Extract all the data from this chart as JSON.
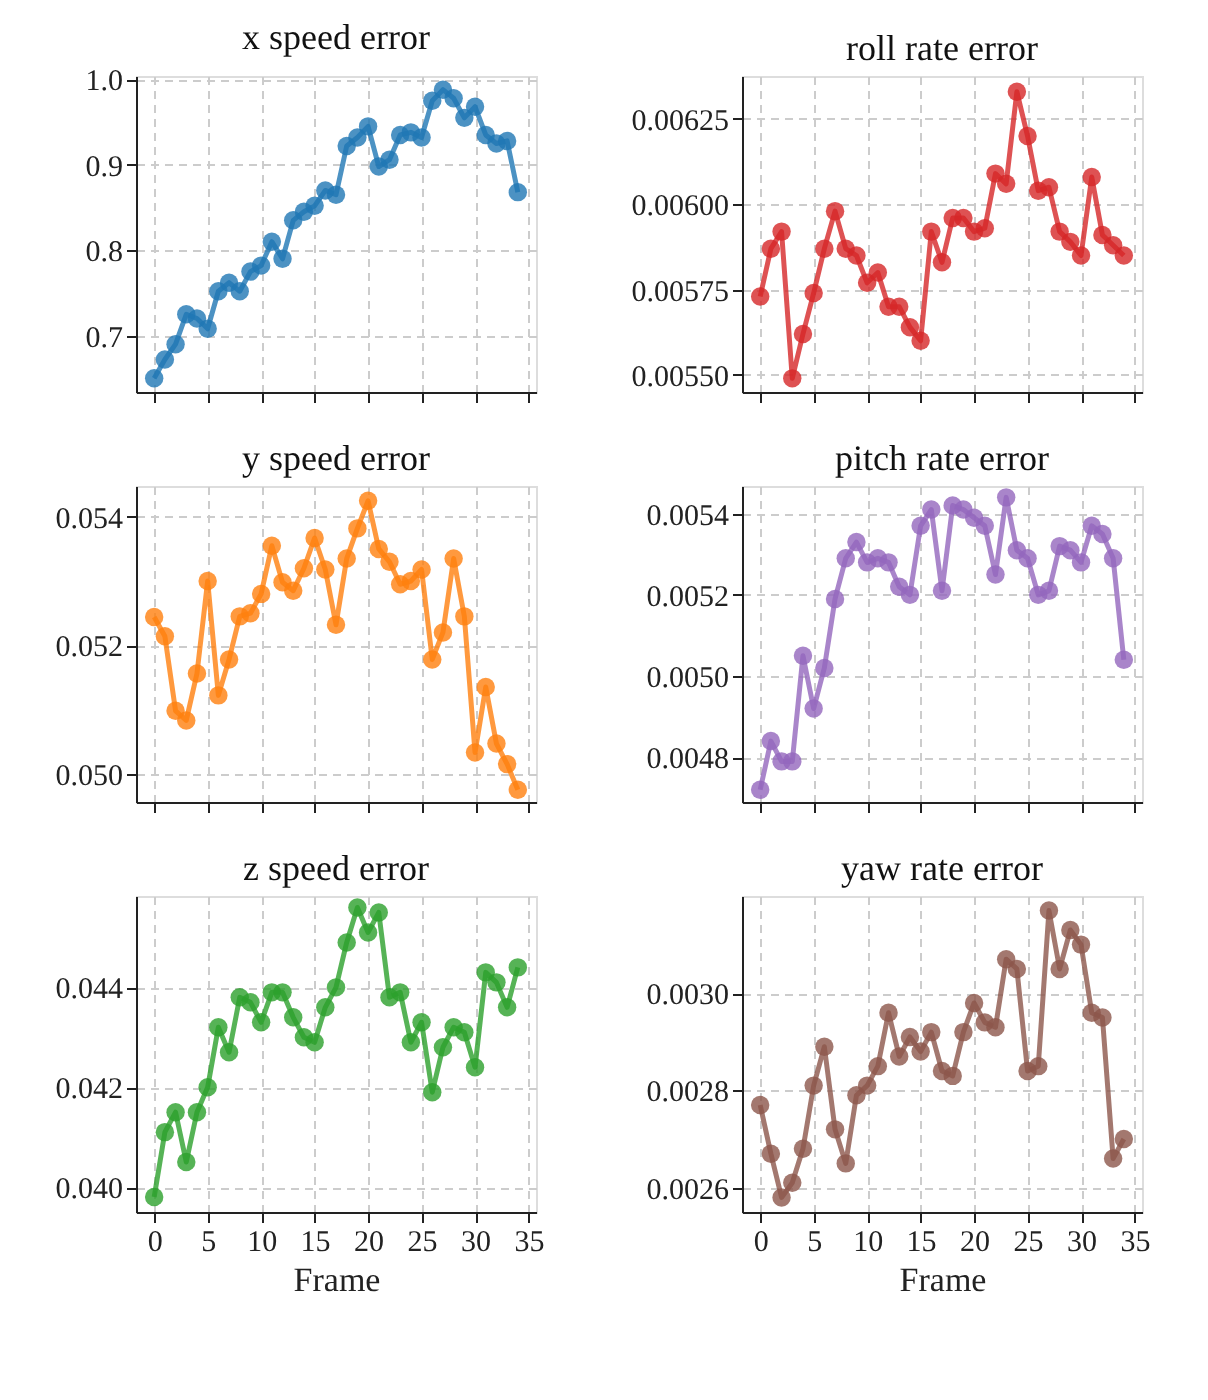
{
  "chart_data": [
    {
      "type": "line",
      "title": "x speed error",
      "marker": "circle",
      "line_style": "solid",
      "grid": true,
      "tick_labels": "y",
      "x": [
        0,
        1,
        2,
        3,
        4,
        5,
        6,
        7,
        8,
        9,
        10,
        11,
        12,
        13,
        14,
        15,
        16,
        17,
        18,
        19,
        20,
        21,
        22,
        23,
        24,
        25,
        26,
        27,
        28,
        29,
        30,
        31,
        32,
        33,
        34
      ],
      "xlim": [
        -1.7,
        35.7
      ],
      "xticks": [
        0,
        5,
        10,
        15,
        20,
        25,
        30,
        35
      ],
      "ylim": [
        0.634,
        1.004
      ],
      "yticks": [
        {
          "value": 0.7,
          "label": "0.7"
        },
        {
          "value": 0.8,
          "label": "0.8"
        },
        {
          "value": 0.9,
          "label": "0.9"
        },
        {
          "value": 1.0,
          "label": "1.0"
        }
      ],
      "series": [
        {
          "color": "#1f77b4",
          "values": [
            0.65,
            0.672,
            0.69,
            0.725,
            0.72,
            0.708,
            0.752,
            0.762,
            0.752,
            0.775,
            0.782,
            0.81,
            0.79,
            0.835,
            0.845,
            0.852,
            0.87,
            0.865,
            0.922,
            0.932,
            0.945,
            0.898,
            0.906,
            0.935,
            0.938,
            0.932,
            0.975,
            0.988,
            0.978,
            0.955,
            0.968,
            0.935,
            0.925,
            0.928,
            0.868
          ]
        }
      ]
    },
    {
      "type": "line",
      "title": "roll rate error",
      "marker": "circle",
      "line_style": "solid",
      "grid": true,
      "tick_labels": "y",
      "x": [
        0,
        1,
        2,
        3,
        4,
        5,
        6,
        7,
        8,
        9,
        10,
        11,
        12,
        13,
        14,
        15,
        16,
        17,
        18,
        19,
        20,
        21,
        22,
        23,
        24,
        25,
        26,
        27,
        28,
        29,
        30,
        31,
        32,
        33,
        34
      ],
      "xlim": [
        -1.7,
        35.7
      ],
      "xticks": [
        0,
        5,
        10,
        15,
        20,
        25,
        30,
        35
      ],
      "ylim": [
        0.00545,
        0.006376
      ],
      "yticks": [
        {
          "value": 0.0055,
          "label": "0.00550"
        },
        {
          "value": 0.00575,
          "label": "0.00575"
        },
        {
          "value": 0.006,
          "label": "0.00600"
        },
        {
          "value": 0.00625,
          "label": "0.00625"
        }
      ],
      "series": [
        {
          "color": "#d62728",
          "values": [
            0.00573,
            0.00587,
            0.00592,
            0.00549,
            0.00562,
            0.00574,
            0.00587,
            0.00598,
            0.00587,
            0.00585,
            0.00577,
            0.0058,
            0.0057,
            0.0057,
            0.00564,
            0.0056,
            0.00592,
            0.00583,
            0.00596,
            0.00596,
            0.00592,
            0.00593,
            0.00609,
            0.00606,
            0.00633,
            0.0062,
            0.00604,
            0.00605,
            0.00592,
            0.00589,
            0.00585,
            0.00608,
            0.00591,
            0.00588,
            0.00585
          ]
        }
      ]
    },
    {
      "type": "line",
      "title": "y speed error",
      "marker": "circle",
      "line_style": "solid",
      "grid": true,
      "tick_labels": "y",
      "x": [
        0,
        1,
        2,
        3,
        4,
        5,
        6,
        7,
        8,
        9,
        10,
        11,
        12,
        13,
        14,
        15,
        16,
        17,
        18,
        19,
        20,
        21,
        22,
        23,
        24,
        25,
        26,
        27,
        28,
        29,
        30,
        31,
        32,
        33,
        34
      ],
      "xlim": [
        -1.7,
        35.7
      ],
      "xticks": [
        0,
        5,
        10,
        15,
        20,
        25,
        30,
        35
      ],
      "ylim": [
        0.04956,
        0.05448
      ],
      "yticks": [
        {
          "value": 0.05,
          "label": "0.050"
        },
        0.052,
        0.054
      ],
      "series": [
        {
          "color": "#ff7f0e",
          "values": [
            0.05244,
            0.05214,
            0.05098,
            0.05083,
            0.05156,
            0.053,
            0.05122,
            0.05178,
            0.05245,
            0.0525,
            0.0528,
            0.05355,
            0.05298,
            0.05285,
            0.0532,
            0.05367,
            0.05318,
            0.05232,
            0.05335,
            0.05382,
            0.05425,
            0.0535,
            0.0533,
            0.05295,
            0.053,
            0.05318,
            0.05178,
            0.0522,
            0.05335,
            0.05245,
            0.05033,
            0.05135,
            0.05047,
            0.05015,
            0.04975
          ]
        }
      ]
    },
    {
      "type": "line",
      "title": "pitch rate error",
      "marker": "circle",
      "line_style": "solid",
      "grid": true,
      "tick_labels": "y",
      "x": [
        0,
        1,
        2,
        3,
        4,
        5,
        6,
        7,
        8,
        9,
        10,
        11,
        12,
        13,
        14,
        15,
        16,
        17,
        18,
        19,
        20,
        21,
        22,
        23,
        24,
        25,
        26,
        27,
        28,
        29,
        30,
        31,
        32,
        33,
        34
      ],
      "xlim": [
        -1.7,
        35.7
      ],
      "xticks": [
        0,
        5,
        10,
        15,
        20,
        25,
        30,
        35
      ],
      "ylim": [
        0.00469,
        0.005468
      ],
      "yticks": [
        0.0048,
        {
          "value": 0.005,
          "label": "0.0050"
        },
        0.0052,
        0.0054
      ],
      "series": [
        {
          "color": "#9467bd",
          "values": [
            0.00472,
            0.00484,
            0.00479,
            0.00479,
            0.00505,
            0.00492,
            0.00502,
            0.00519,
            0.00529,
            0.00533,
            0.00528,
            0.00529,
            0.00528,
            0.00522,
            0.0052,
            0.00537,
            0.00541,
            0.00521,
            0.00542,
            0.00541,
            0.00539,
            0.00537,
            0.00525,
            0.00544,
            0.00531,
            0.00529,
            0.0052,
            0.00521,
            0.00532,
            0.00531,
            0.00528,
            0.00537,
            0.00535,
            0.00529,
            0.00504
          ]
        }
      ]
    },
    {
      "type": "line",
      "title": "z speed error",
      "xlabel": "Frame",
      "marker": "circle",
      "line_style": "solid",
      "grid": true,
      "x": [
        0,
        1,
        2,
        3,
        4,
        5,
        6,
        7,
        8,
        9,
        10,
        11,
        12,
        13,
        14,
        15,
        16,
        17,
        18,
        19,
        20,
        21,
        22,
        23,
        24,
        25,
        26,
        27,
        28,
        29,
        30,
        31,
        32,
        33,
        34
      ],
      "xlim": [
        -1.7,
        35.7
      ],
      "xticks": [
        0,
        5,
        10,
        15,
        20,
        25,
        30,
        35
      ],
      "ylim": [
        0.0395,
        0.04583
      ],
      "yticks": [
        {
          "value": 0.04,
          "label": "0.040"
        },
        0.042,
        0.044
      ],
      "series": [
        {
          "color": "#2ca02c",
          "values": [
            0.0398,
            0.0411,
            0.0415,
            0.0405,
            0.0415,
            0.042,
            0.0432,
            0.0427,
            0.0438,
            0.0437,
            0.0433,
            0.0439,
            0.0439,
            0.0434,
            0.043,
            0.0429,
            0.0436,
            0.044,
            0.0449,
            0.0456,
            0.0451,
            0.0455,
            0.0438,
            0.0439,
            0.0429,
            0.0433,
            0.0419,
            0.0428,
            0.0432,
            0.0431,
            0.0424,
            0.0443,
            0.0441,
            0.0436,
            0.0444
          ]
        }
      ]
    },
    {
      "type": "line",
      "title": "yaw rate error",
      "xlabel": "Frame",
      "marker": "circle",
      "line_style": "solid",
      "grid": true,
      "x": [
        0,
        1,
        2,
        3,
        4,
        5,
        6,
        7,
        8,
        9,
        10,
        11,
        12,
        13,
        14,
        15,
        16,
        17,
        18,
        19,
        20,
        21,
        22,
        23,
        24,
        25,
        26,
        27,
        28,
        29,
        30,
        31,
        32,
        33,
        34
      ],
      "xlim": [
        -1.7,
        35.7
      ],
      "xticks": [
        0,
        5,
        10,
        15,
        20,
        25,
        30,
        35
      ],
      "ylim": [
        0.00255,
        0.0032
      ],
      "yticks": [
        0.0026,
        0.0028,
        {
          "value": 0.003,
          "label": "0.0030"
        }
      ],
      "series": [
        {
          "color": "#8c564b",
          "values": [
            0.00277,
            0.00267,
            0.00258,
            0.00261,
            0.00268,
            0.00281,
            0.00289,
            0.00272,
            0.00265,
            0.00279,
            0.00281,
            0.00285,
            0.00296,
            0.00287,
            0.00291,
            0.00288,
            0.00292,
            0.00284,
            0.00283,
            0.00292,
            0.00298,
            0.00294,
            0.00293,
            0.00307,
            0.00305,
            0.00284,
            0.00285,
            0.00317,
            0.00305,
            0.00313,
            0.0031,
            0.00296,
            0.00295,
            0.00266,
            0.0027
          ]
        }
      ]
    }
  ]
}
